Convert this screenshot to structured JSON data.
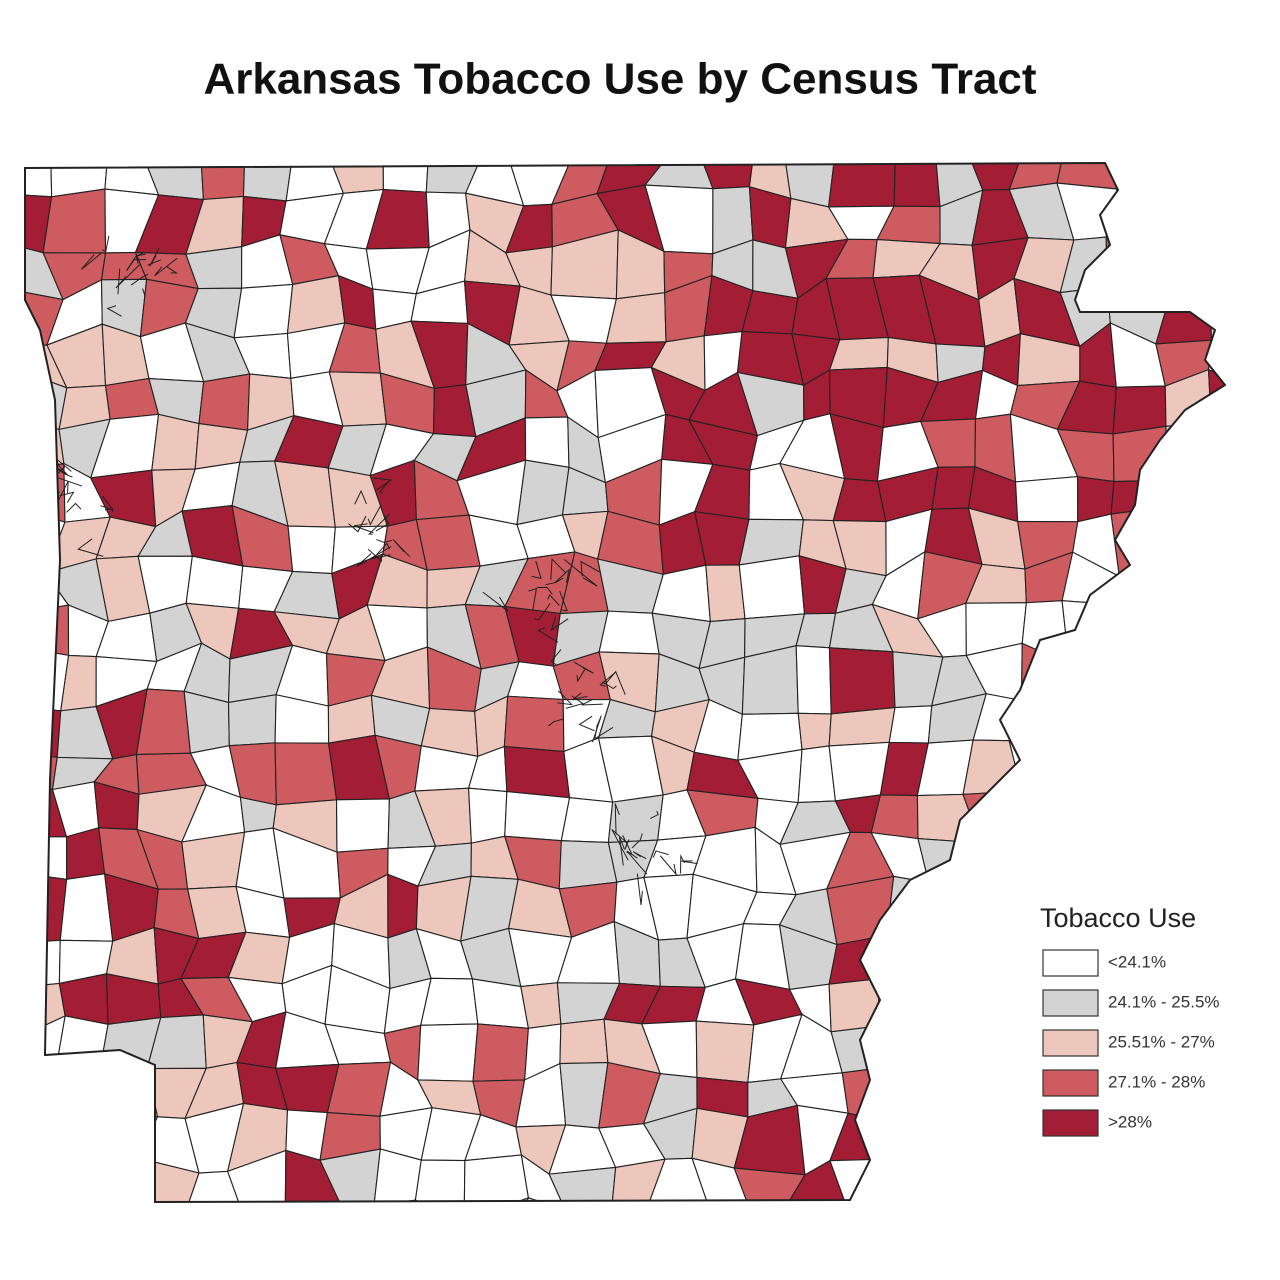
{
  "title": "Arkansas Tobacco Use by Census Tract",
  "legend": {
    "title": "Tobacco Use",
    "items": [
      {
        "label": "<24.1%",
        "color": "#ffffff"
      },
      {
        "label": "24.1% - 25.5%",
        "color": "#d3d3d3"
      },
      {
        "label": "25.51% - 27%",
        "color": "#eec7bc"
      },
      {
        "label": "27.1% - 28%",
        "color": "#cd5b5f"
      },
      {
        "label": ">28%",
        "color": "#a31d35"
      }
    ]
  }
}
